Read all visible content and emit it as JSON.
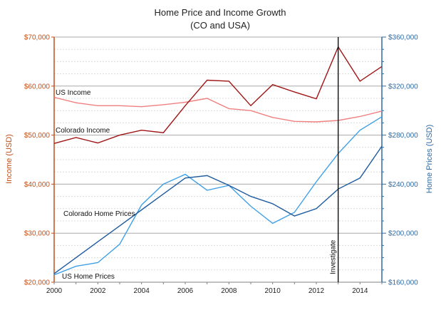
{
  "chart_data": {
    "type": "line",
    "title": "Home Price and Income Growth",
    "subtitle": "(CO and USA)",
    "xlabel": "",
    "x": [
      2000,
      2001,
      2002,
      2003,
      2004,
      2005,
      2006,
      2007,
      2008,
      2009,
      2010,
      2011,
      2012,
      2013,
      2014,
      2015
    ],
    "x_ticks": [
      "2000",
      "2002",
      "2004",
      "2006",
      "2008",
      "2010",
      "2012",
      "2014"
    ],
    "left_axis": {
      "label": "Income (USD)",
      "range": [
        20000,
        70000
      ],
      "ticks": [
        "$20,000",
        "$30,000",
        "$40,000",
        "$50,000",
        "$60,000",
        "$70,000"
      ],
      "color": "#c0501a"
    },
    "right_axis": {
      "label": "Home Prices (USD)",
      "range": [
        160000,
        360000
      ],
      "ticks": [
        "$160,000",
        "$200,000",
        "$240,000",
        "$280,000",
        "$320,000",
        "$360,000"
      ],
      "color": "#2f6aa3"
    },
    "grid": true,
    "series": [
      {
        "name": "US Income",
        "axis": "left",
        "color": "#f08080",
        "values": [
          57700,
          56600,
          56000,
          56000,
          55800,
          56200,
          56700,
          57500,
          55400,
          55000,
          53600,
          52800,
          52700,
          53000,
          53800,
          54900
        ]
      },
      {
        "name": "Colorado Income",
        "axis": "left",
        "color": "#a01515",
        "values": [
          48300,
          49500,
          48400,
          50000,
          51000,
          50500,
          56000,
          61200,
          61000,
          56000,
          60300,
          58800,
          57400,
          68000,
          61000,
          64000
        ]
      },
      {
        "name": "Colorado Home Prices",
        "axis": "right",
        "color": "#3fa0e6",
        "values": [
          166000,
          173000,
          176000,
          191000,
          223000,
          240000,
          248000,
          235000,
          239000,
          222000,
          208000,
          217000,
          242000,
          265000,
          284000,
          295000
        ]
      },
      {
        "name": "US Home Prices",
        "axis": "right",
        "color": "#1f5b9e",
        "values": [
          167000,
          180000,
          193000,
          206000,
          219000,
          232000,
          245000,
          247000,
          239000,
          230000,
          224000,
          214000,
          220000,
          236000,
          245000,
          271000
        ]
      }
    ],
    "annotations": [
      {
        "text": "Investigate",
        "x": 2013
      }
    ]
  }
}
